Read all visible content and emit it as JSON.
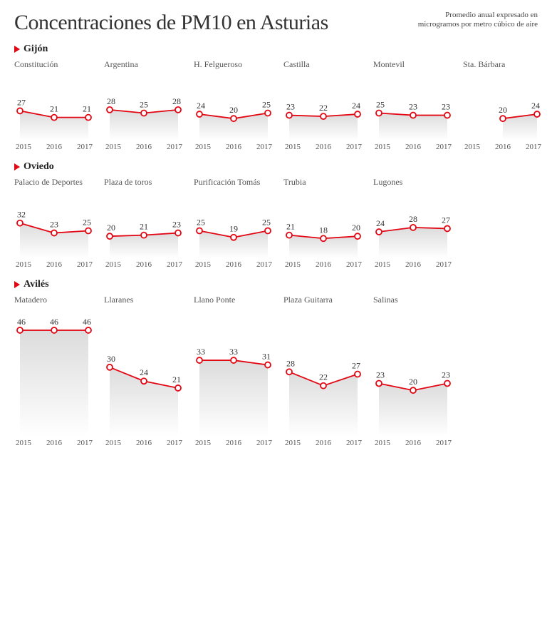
{
  "title": "Concentraciones de PM10 en Asturias",
  "subtitle": "Promedio anual expresado en microgramos por metro cúbico de aire",
  "x_labels": [
    "2015",
    "2016",
    "2017"
  ],
  "chart_style": {
    "type": "line",
    "width": 112,
    "height": 95,
    "y_min": 0,
    "y_max": 50,
    "line_color": "#e30613",
    "line_width": 1.8,
    "marker_radius": 4,
    "marker_fill": "#ffffff",
    "marker_stroke": "#e30613",
    "area_fill_top": "#e0e0e0",
    "area_fill_bottom": "#ffffff",
    "value_fontsize": 12,
    "value_color": "#333333",
    "label_fontsize": 12,
    "label_color": "#555555",
    "tick_fontsize": 11,
    "tick_color": "#555555"
  },
  "sections": [
    {
      "name": "Gijón",
      "charts": [
        {
          "label": "Constitución",
          "values": [
            27,
            21,
            21
          ]
        },
        {
          "label": "Argentina",
          "values": [
            28,
            25,
            28
          ]
        },
        {
          "label": "H. Felgueroso",
          "values": [
            24,
            20,
            25
          ]
        },
        {
          "label": "Castilla",
          "values": [
            23,
            22,
            24
          ]
        },
        {
          "label": "Montevil",
          "values": [
            25,
            23,
            23
          ]
        },
        {
          "label": "Sta. Bárbara",
          "values": [
            null,
            20,
            24
          ]
        }
      ]
    },
    {
      "name": "Oviedo",
      "charts": [
        {
          "label": "Palacio de Deportes",
          "values": [
            32,
            23,
            25
          ]
        },
        {
          "label": "Plaza de toros",
          "values": [
            20,
            21,
            23
          ]
        },
        {
          "label": "Purificación Tomás",
          "values": [
            25,
            19,
            25
          ]
        },
        {
          "label": "Trubia",
          "values": [
            21,
            18,
            20
          ]
        },
        {
          "label": "Lugones",
          "values": [
            24,
            28,
            27
          ]
        }
      ]
    },
    {
      "name": "Avilés",
      "charts": [
        {
          "label": "Matadero",
          "values": [
            46,
            46,
            46
          ]
        },
        {
          "label": "Llaranes",
          "values": [
            30,
            24,
            21
          ]
        },
        {
          "label": "Llano Ponte",
          "values": [
            33,
            33,
            31
          ]
        },
        {
          "label": "Plaza Guitarra",
          "values": [
            28,
            22,
            27
          ]
        },
        {
          "label": "Salinas",
          "values": [
            23,
            20,
            23
          ]
        }
      ]
    }
  ]
}
